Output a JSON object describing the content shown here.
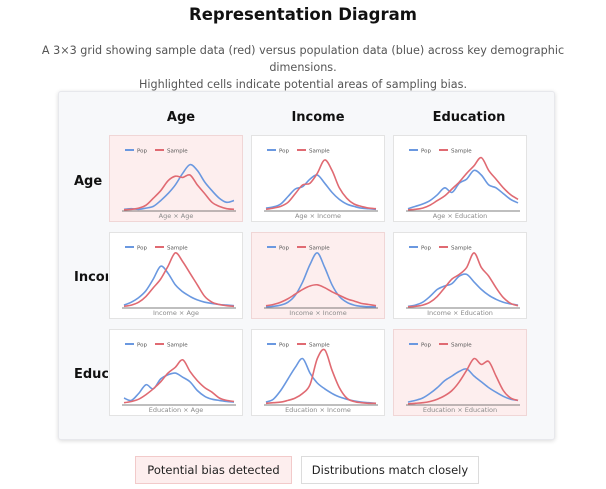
{
  "page": {
    "title": "Representation Diagram",
    "subtitle_line1": "A 3×3 grid showing sample data (red) versus population data (blue) across key demographic dimensions.",
    "subtitle_line2": "Highlighted cells indicate potential areas of sampling bias."
  },
  "grid": {
    "columns": [
      "Age",
      "Income",
      "Education"
    ],
    "rows": [
      "Age",
      "Income",
      "Education"
    ],
    "legend_pop": "Pop",
    "legend_sample": "Sample",
    "cells": [
      {
        "caption": "Age × Age",
        "bias": true
      },
      {
        "caption": "Age × Income",
        "bias": false
      },
      {
        "caption": "Age × Education",
        "bias": false
      },
      {
        "caption": "Income × Age",
        "bias": false
      },
      {
        "caption": "Income × Income",
        "bias": true
      },
      {
        "caption": "Income × Education",
        "bias": false
      },
      {
        "caption": "Education × Age",
        "bias": false
      },
      {
        "caption": "Education × Income",
        "bias": false
      },
      {
        "caption": "Education × Education",
        "bias": true
      }
    ]
  },
  "legend": {
    "bias_label": "Potential bias detected",
    "match_label": "Distributions match closely"
  },
  "colors": {
    "population": "#6a98e0",
    "sample": "#e06a72",
    "bias_fill": "#fdeeee"
  },
  "chart_data": [
    {
      "type": "line",
      "pop": [
        0.03,
        0.04,
        0.03,
        0.05,
        0.08,
        0.18,
        0.3,
        0.45,
        0.65,
        0.8,
        0.7,
        0.5,
        0.35,
        0.22,
        0.15,
        0.18
      ],
      "sample": [
        0.02,
        0.03,
        0.05,
        0.1,
        0.22,
        0.35,
        0.52,
        0.6,
        0.58,
        0.62,
        0.45,
        0.3,
        0.15,
        0.08,
        0.04,
        0.03
      ]
    },
    {
      "type": "line",
      "pop": [
        0.05,
        0.07,
        0.12,
        0.25,
        0.38,
        0.42,
        0.55,
        0.62,
        0.48,
        0.32,
        0.2,
        0.12,
        0.08,
        0.05,
        0.04,
        0.03
      ],
      "sample": [
        0.03,
        0.05,
        0.08,
        0.15,
        0.3,
        0.45,
        0.48,
        0.65,
        0.88,
        0.7,
        0.4,
        0.22,
        0.12,
        0.08,
        0.05,
        0.04
      ]
    },
    {
      "type": "line",
      "pop": [
        0.04,
        0.08,
        0.12,
        0.18,
        0.28,
        0.4,
        0.32,
        0.48,
        0.55,
        0.7,
        0.62,
        0.45,
        0.4,
        0.3,
        0.2,
        0.14
      ],
      "sample": [
        0.02,
        0.03,
        0.05,
        0.1,
        0.18,
        0.26,
        0.38,
        0.5,
        0.65,
        0.78,
        0.92,
        0.7,
        0.55,
        0.4,
        0.28,
        0.2
      ]
    },
    {
      "type": "line",
      "pop": [
        0.05,
        0.1,
        0.18,
        0.3,
        0.5,
        0.72,
        0.6,
        0.4,
        0.28,
        0.2,
        0.14,
        0.1,
        0.08,
        0.06,
        0.05,
        0.04
      ],
      "sample": [
        0.03,
        0.05,
        0.1,
        0.2,
        0.35,
        0.5,
        0.72,
        0.95,
        0.8,
        0.6,
        0.4,
        0.2,
        0.1,
        0.06,
        0.04,
        0.03
      ]
    },
    {
      "type": "line",
      "pop": [
        0.02,
        0.03,
        0.05,
        0.1,
        0.22,
        0.45,
        0.75,
        0.95,
        0.7,
        0.4,
        0.2,
        0.1,
        0.05,
        0.03,
        0.02,
        0.02
      ],
      "sample": [
        0.04,
        0.06,
        0.1,
        0.16,
        0.24,
        0.32,
        0.38,
        0.4,
        0.35,
        0.28,
        0.22,
        0.16,
        0.12,
        0.08,
        0.06,
        0.04
      ]
    },
    {
      "type": "line",
      "pop": [
        0.03,
        0.05,
        0.1,
        0.2,
        0.32,
        0.38,
        0.42,
        0.55,
        0.58,
        0.45,
        0.32,
        0.22,
        0.15,
        0.1,
        0.07,
        0.05
      ],
      "sample": [
        0.02,
        0.03,
        0.05,
        0.1,
        0.2,
        0.35,
        0.5,
        0.58,
        0.7,
        0.95,
        0.7,
        0.55,
        0.35,
        0.18,
        0.08,
        0.04
      ]
    },
    {
      "type": "line",
      "pop": [
        0.12,
        0.08,
        0.2,
        0.35,
        0.28,
        0.45,
        0.52,
        0.55,
        0.48,
        0.4,
        0.25,
        0.15,
        0.1,
        0.08,
        0.06,
        0.05
      ],
      "sample": [
        0.04,
        0.06,
        0.1,
        0.18,
        0.28,
        0.4,
        0.55,
        0.65,
        0.78,
        0.58,
        0.42,
        0.3,
        0.22,
        0.12,
        0.08,
        0.06
      ]
    },
    {
      "type": "line",
      "pop": [
        0.05,
        0.1,
        0.25,
        0.45,
        0.65,
        0.8,
        0.55,
        0.38,
        0.28,
        0.2,
        0.14,
        0.1,
        0.07,
        0.05,
        0.04,
        0.03
      ],
      "sample": [
        0.03,
        0.04,
        0.05,
        0.08,
        0.12,
        0.2,
        0.35,
        0.8,
        0.95,
        0.6,
        0.3,
        0.12,
        0.06,
        0.04,
        0.03,
        0.03
      ]
    },
    {
      "type": "line",
      "pop": [
        0.05,
        0.08,
        0.12,
        0.2,
        0.3,
        0.42,
        0.5,
        0.58,
        0.62,
        0.5,
        0.4,
        0.3,
        0.22,
        0.15,
        0.1,
        0.08
      ],
      "sample": [
        0.02,
        0.03,
        0.04,
        0.06,
        0.1,
        0.16,
        0.25,
        0.4,
        0.6,
        0.8,
        0.7,
        0.75,
        0.5,
        0.25,
        0.12,
        0.08
      ]
    }
  ]
}
